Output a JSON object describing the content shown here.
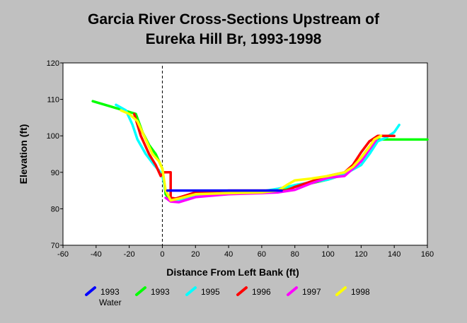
{
  "title_line1": "Garcia River Cross-Sections Upstream of",
  "title_line2": "Eureka Hill Br, 1993-1998",
  "chart_data": {
    "type": "line",
    "title": "Garcia River Cross-Sections Upstream of Eureka Hill Br, 1993-1998",
    "xlabel": "Distance From Left Bank (ft)",
    "ylabel": "Elevation (ft)",
    "xlim": [
      -60,
      160
    ],
    "ylim": [
      70,
      120
    ],
    "xticks": [
      -60,
      -40,
      -20,
      0,
      20,
      40,
      60,
      80,
      100,
      120,
      140,
      160
    ],
    "yticks": [
      70,
      80,
      90,
      100,
      110,
      120
    ],
    "reference_line_x": 0,
    "legend_position": "bottom",
    "series": [
      {
        "name": "1993",
        "name_line2": "Water",
        "color": "#0000ff",
        "x": [
          3,
          72
        ],
        "y": [
          85,
          85
        ]
      },
      {
        "name": "1993",
        "color": "#00ff00",
        "x": [
          -42,
          -16,
          -12,
          -8,
          -4,
          0,
          2,
          5,
          10,
          20,
          40,
          60,
          80,
          100,
          110,
          115,
          120,
          125,
          130,
          135,
          160
        ],
        "y": [
          109.5,
          106,
          101,
          97.5,
          95,
          91,
          84,
          82.5,
          83,
          84,
          84.3,
          84.5,
          86,
          88,
          89.5,
          91,
          94,
          97,
          99,
          99,
          99
        ]
      },
      {
        "name": "1995",
        "color": "#00ffff",
        "x": [
          -28,
          -22,
          -18,
          -15,
          -10,
          -5,
          -2,
          0,
          2,
          5,
          10,
          20,
          40,
          60,
          70,
          80,
          100,
          110,
          120,
          125,
          130,
          135,
          140,
          143
        ],
        "y": [
          108.5,
          107,
          103,
          99,
          95,
          92,
          90.5,
          89,
          85,
          82.5,
          82.5,
          83.8,
          84.2,
          84.8,
          85.5,
          86.5,
          88,
          89.5,
          92,
          95,
          98.5,
          99.5,
          101,
          103
        ]
      },
      {
        "name": "1996",
        "color": "#ff0000",
        "x": [
          -17,
          -13,
          -8,
          -4,
          -1,
          1,
          5,
          5,
          8,
          20,
          40,
          60,
          75,
          80,
          100,
          110,
          115,
          120,
          125,
          130,
          135,
          140
        ],
        "y": [
          106,
          100,
          95,
          92,
          89,
          90,
          90,
          83,
          82.8,
          84.5,
          85,
          85,
          85,
          86,
          89,
          90,
          92,
          95.5,
          98.5,
          100,
          100,
          100
        ]
      },
      {
        "name": "1997",
        "color": "#ff00ff",
        "x": [
          2,
          5,
          10,
          20,
          40,
          60,
          70,
          80,
          90,
          100,
          110,
          120,
          130
        ],
        "y": [
          83,
          82,
          81.8,
          83.2,
          84,
          84.3,
          84.5,
          85.2,
          87,
          88.5,
          89,
          93,
          99.5
        ]
      },
      {
        "name": "1998",
        "color": "#ffff00",
        "x": [
          -25,
          -20,
          -15,
          -10,
          -6,
          -2,
          0,
          2,
          5,
          10,
          20,
          40,
          60,
          70,
          75,
          80,
          90,
          100,
          110,
          115,
          120,
          125,
          128,
          132
        ],
        "y": [
          107,
          106,
          104,
          99,
          95,
          93,
          91,
          85,
          82.3,
          82.8,
          84,
          84.3,
          84.5,
          85,
          86.5,
          87.8,
          88.3,
          89,
          90,
          91.5,
          94,
          97,
          99,
          100
        ]
      }
    ]
  }
}
